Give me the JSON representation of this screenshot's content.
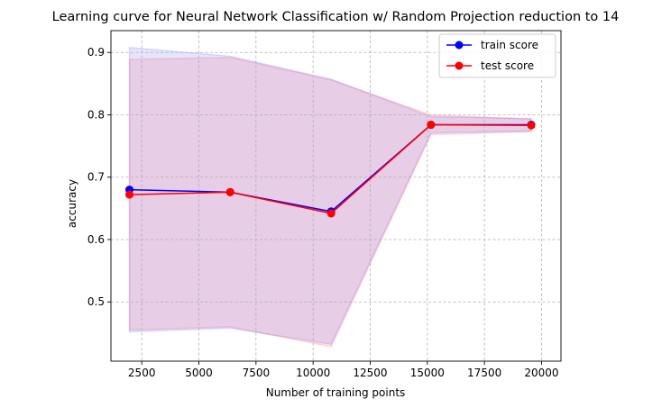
{
  "chart_data": {
    "type": "line",
    "title": "Learning curve for Neural Network Classification w/ Random Projection reduction to 14",
    "xlabel": "Number of training points",
    "ylabel": "accuracy",
    "xlim": [
      1150,
      20850
    ],
    "ylim": [
      0.405,
      0.935
    ],
    "xticks": [
      2500,
      5000,
      7500,
      10000,
      12500,
      15000,
      17500,
      20000
    ],
    "yticks": [
      0.5,
      0.6,
      0.7,
      0.8,
      0.9
    ],
    "xtick_labels": [
      "2500",
      "5000",
      "7500",
      "10000",
      "12500",
      "15000",
      "17500",
      "20000"
    ],
    "ytick_labels": [
      "0.5",
      "0.6",
      "0.7",
      "0.8",
      "0.9"
    ],
    "grid": true,
    "legend_position": "top-right",
    "x": [
      1960,
      6370,
      10790,
      15160,
      19550
    ],
    "series": [
      {
        "name": "train score",
        "color": "#0000ff",
        "band_color": "#0000ff",
        "values": [
          0.68,
          0.676,
          0.645,
          0.784,
          0.784
        ],
        "band_lower": [
          0.452,
          0.458,
          0.432,
          0.771,
          0.774
        ],
        "band_upper": [
          0.908,
          0.894,
          0.857,
          0.797,
          0.794
        ]
      },
      {
        "name": "test score",
        "color": "#ff0000",
        "band_color": "#ff0000",
        "values": [
          0.672,
          0.676,
          0.642,
          0.784,
          0.783
        ],
        "band_lower": [
          0.455,
          0.46,
          0.428,
          0.768,
          0.773
        ],
        "band_upper": [
          0.889,
          0.892,
          0.856,
          0.8,
          0.793
        ]
      }
    ]
  }
}
